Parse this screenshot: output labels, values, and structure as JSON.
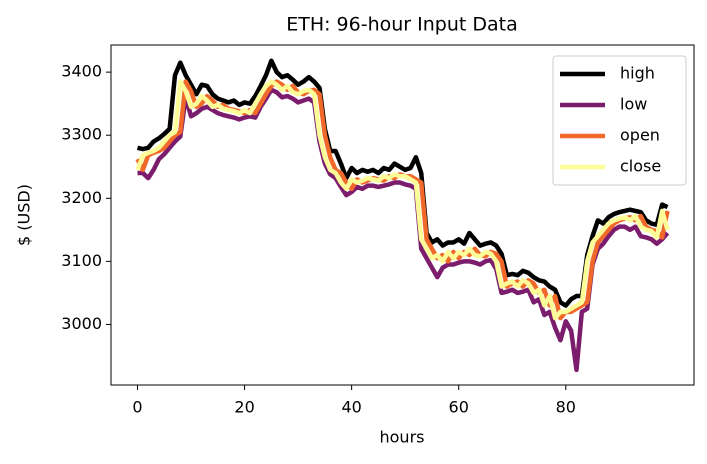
{
  "chart_data": {
    "type": "line",
    "title": "ETH: 96-hour Input Data",
    "x_label": "hours",
    "y_label": "$ (USD)",
    "x": [
      0,
      1,
      2,
      3,
      4,
      5,
      6,
      7,
      8,
      9,
      10,
      11,
      12,
      13,
      14,
      15,
      16,
      17,
      18,
      19,
      20,
      21,
      22,
      23,
      24,
      25,
      26,
      27,
      28,
      29,
      30,
      31,
      32,
      33,
      34,
      35,
      36,
      37,
      38,
      39,
      40,
      41,
      42,
      43,
      44,
      45,
      46,
      47,
      48,
      49,
      50,
      51,
      52,
      53,
      54,
      55,
      56,
      57,
      58,
      59,
      60,
      61,
      62,
      63,
      64,
      65,
      66,
      67,
      68,
      69,
      70,
      71,
      72,
      73,
      74,
      75,
      76,
      77,
      78,
      79,
      80,
      81,
      82,
      83,
      84,
      85,
      86,
      87,
      88,
      89,
      90,
      91,
      92,
      93,
      94,
      95,
      96,
      97,
      98,
      99
    ],
    "xlim": [
      -4.95,
      103.95
    ],
    "xticks": [
      0,
      20,
      40,
      60,
      80
    ],
    "ylim": [
      2904,
      3443
    ],
    "yticks": [
      3000,
      3100,
      3200,
      3300,
      3400
    ],
    "legend": "upper right",
    "series": [
      {
        "name": "high",
        "color": "#000000",
        "values": [
          3280,
          3278,
          3280,
          3290,
          3295,
          3302,
          3310,
          3395,
          3415,
          3395,
          3380,
          3365,
          3380,
          3378,
          3365,
          3358,
          3355,
          3352,
          3355,
          3348,
          3352,
          3350,
          3362,
          3378,
          3395,
          3418,
          3400,
          3392,
          3395,
          3388,
          3380,
          3385,
          3392,
          3385,
          3375,
          3310,
          3275,
          3275,
          3255,
          3232,
          3248,
          3240,
          3245,
          3242,
          3245,
          3240,
          3248,
          3245,
          3255,
          3250,
          3245,
          3248,
          3265,
          3240,
          3145,
          3130,
          3135,
          3125,
          3130,
          3130,
          3135,
          3128,
          3145,
          3135,
          3125,
          3128,
          3130,
          3125,
          3112,
          3078,
          3080,
          3078,
          3085,
          3082,
          3075,
          3070,
          3068,
          3060,
          3055,
          3035,
          3030,
          3040,
          3045,
          3045,
          3110,
          3140,
          3165,
          3160,
          3170,
          3175,
          3178,
          3180,
          3182,
          3180,
          3178,
          3165,
          3160,
          3158,
          3190,
          3186
        ]
      },
      {
        "name": "low",
        "color": "#7b1c6d",
        "values": [
          3240,
          3240,
          3232,
          3245,
          3262,
          3270,
          3280,
          3290,
          3298,
          3360,
          3330,
          3335,
          3342,
          3345,
          3340,
          3335,
          3332,
          3330,
          3328,
          3325,
          3328,
          3330,
          3328,
          3345,
          3358,
          3372,
          3368,
          3360,
          3362,
          3358,
          3352,
          3355,
          3358,
          3352,
          3290,
          3255,
          3238,
          3232,
          3218,
          3205,
          3210,
          3218,
          3215,
          3220,
          3220,
          3218,
          3220,
          3222,
          3225,
          3225,
          3222,
          3220,
          3215,
          3120,
          3105,
          3090,
          3075,
          3090,
          3095,
          3095,
          3098,
          3100,
          3100,
          3098,
          3095,
          3100,
          3102,
          3088,
          3050,
          3052,
          3055,
          3050,
          3052,
          3055,
          3035,
          3040,
          3015,
          3020,
          2995,
          2975,
          3005,
          2990,
          2928,
          3020,
          3025,
          3095,
          3120,
          3128,
          3140,
          3150,
          3155,
          3155,
          3150,
          3155,
          3140,
          3138,
          3135,
          3128,
          3135,
          3145
        ]
      },
      {
        "name": "open",
        "color": "#f0692a",
        "values": [
          3262,
          3245,
          3268,
          3272,
          3275,
          3280,
          3290,
          3300,
          3305,
          3385,
          3370,
          3345,
          3350,
          3362,
          3355,
          3345,
          3348,
          3342,
          3340,
          3338,
          3335,
          3340,
          3335,
          3350,
          3365,
          3378,
          3385,
          3380,
          3372,
          3378,
          3368,
          3365,
          3370,
          3372,
          3365,
          3300,
          3265,
          3245,
          3240,
          3225,
          3215,
          3230,
          3225,
          3228,
          3232,
          3230,
          3228,
          3235,
          3232,
          3238,
          3235,
          3235,
          3230,
          3225,
          3135,
          3120,
          3105,
          3110,
          3100,
          3115,
          3105,
          3115,
          3110,
          3120,
          3110,
          3108,
          3115,
          3112,
          3100,
          3060,
          3065,
          3068,
          3060,
          3070,
          3065,
          3050,
          3055,
          3030,
          3045,
          3010,
          3020,
          3020,
          3025,
          3030,
          3035,
          3100,
          3130,
          3140,
          3150,
          3160,
          3165,
          3168,
          3170,
          3165,
          3172,
          3155,
          3150,
          3148,
          3138,
          3180
        ]
      },
      {
        "name": "close",
        "color": "#fcfc98",
        "values": [
          3245,
          3268,
          3272,
          3275,
          3280,
          3290,
          3300,
          3305,
          3385,
          3370,
          3345,
          3350,
          3362,
          3355,
          3345,
          3348,
          3342,
          3340,
          3338,
          3335,
          3340,
          3335,
          3350,
          3365,
          3378,
          3385,
          3380,
          3372,
          3378,
          3368,
          3365,
          3370,
          3372,
          3365,
          3300,
          3265,
          3245,
          3240,
          3225,
          3215,
          3230,
          3225,
          3228,
          3232,
          3230,
          3228,
          3235,
          3232,
          3238,
          3235,
          3235,
          3230,
          3225,
          3135,
          3120,
          3105,
          3110,
          3100,
          3115,
          3105,
          3115,
          3110,
          3120,
          3110,
          3108,
          3115,
          3112,
          3100,
          3060,
          3065,
          3068,
          3060,
          3070,
          3065,
          3050,
          3055,
          3030,
          3045,
          3010,
          3020,
          3020,
          3025,
          3030,
          3035,
          3100,
          3130,
          3140,
          3150,
          3160,
          3165,
          3168,
          3170,
          3165,
          3172,
          3155,
          3150,
          3148,
          3138,
          3180,
          3150
        ]
      }
    ]
  }
}
